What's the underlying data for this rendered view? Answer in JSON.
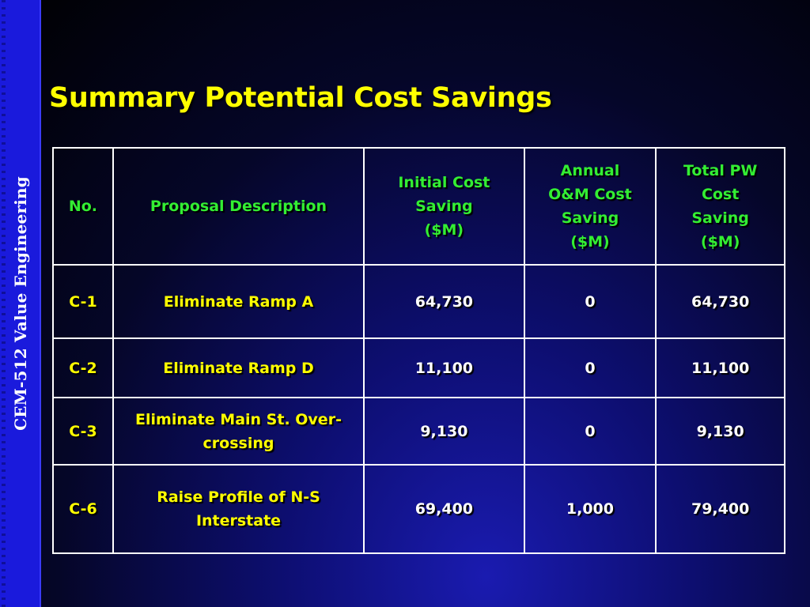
{
  "sidebar": {
    "label": "CEM-512 Value Engineering"
  },
  "title": "Summary Potential Cost Savings",
  "colors": {
    "title": "#ffff00",
    "header_text": "#33ee33",
    "cell_text": "#ffffff",
    "label_text": "#ffff00",
    "sidebar": "#1a1adc",
    "background": "#050628"
  },
  "table": {
    "headers": {
      "no": "No.",
      "description": "Proposal Description",
      "initial": [
        "Initial Cost",
        "Saving",
        "($M)"
      ],
      "annual": [
        "Annual",
        "O&M Cost",
        "Saving",
        "($M)"
      ],
      "total": [
        "Total PW",
        "Cost",
        "Saving",
        "($M)"
      ]
    },
    "rows": [
      {
        "no": "C-1",
        "description": [
          "Eliminate Ramp A"
        ],
        "initial": "64,730",
        "annual": "0",
        "total": "64,730"
      },
      {
        "no": "C-2",
        "description": [
          "Eliminate Ramp D"
        ],
        "initial": "11,100",
        "annual": "0",
        "total": "11,100"
      },
      {
        "no": "C-3",
        "description": [
          "Eliminate Main St. Over-",
          "crossing"
        ],
        "initial": "9,130",
        "annual": "0",
        "total": "9,130"
      },
      {
        "no": "C-6",
        "description": [
          "Raise Profile of N-S",
          "Interstate"
        ],
        "initial": "69,400",
        "annual": "1,000",
        "total": "79,400"
      }
    ]
  }
}
